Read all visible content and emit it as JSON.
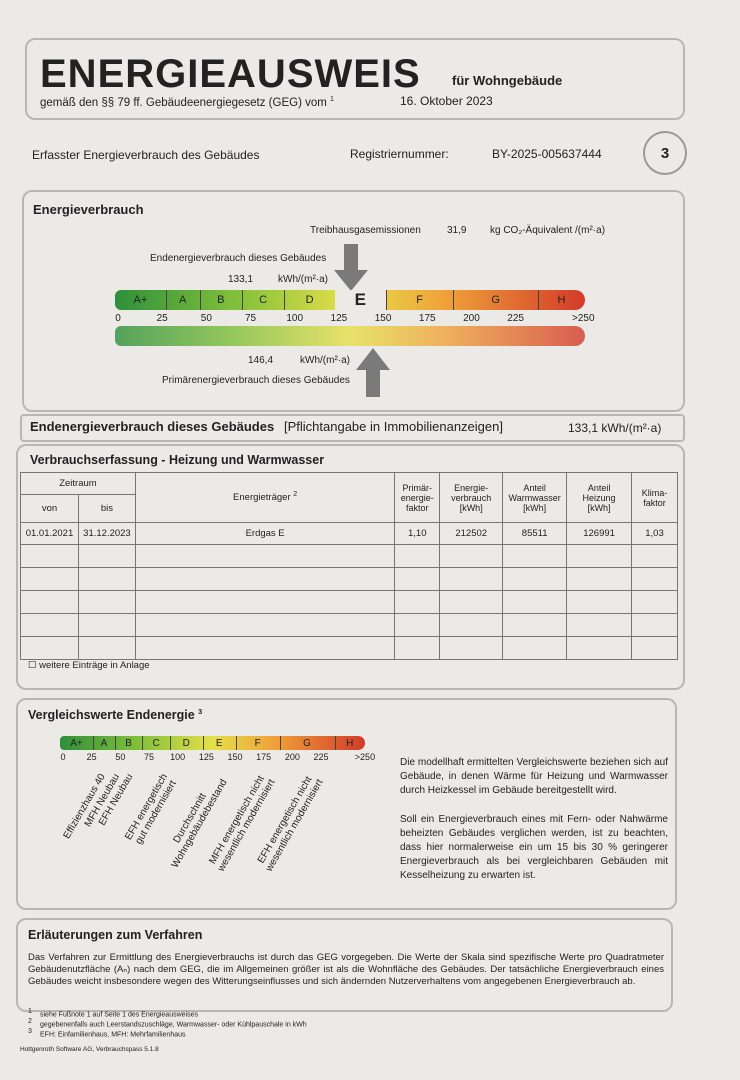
{
  "header": {
    "title": "ENERGIEAUSWEIS",
    "subtitle": "für Wohngebäude",
    "legal": "gemäß den §§ 79 ff. Gebäudeenergiegesetz (GEG) vom",
    "legal_note": "1",
    "date": "16. Oktober 2023"
  },
  "info": {
    "label": "Erfasster Energieverbrauch des Gebäudes",
    "reg_label": "Registriernummer:",
    "reg_number": "BY-2025-005637444",
    "page": "3"
  },
  "energy": {
    "title": "Energieverbrauch",
    "ghg_label": "Treibhausgasemissionen",
    "ghg_value": "31,9",
    "ghg_unit": "kg CO₂-Äquivalent /(m²·a)",
    "end_label": "Endenergieverbrauch dieses Gebäudes",
    "end_value": "133,1",
    "end_unit": "kWh/(m²·a)",
    "prim_value": "146,4",
    "prim_unit": "kWh/(m²·a)",
    "prim_label": "Primärenergieverbrauch dieses Gebäudes"
  },
  "scale": {
    "classes": [
      "A+",
      "A",
      "B",
      "C",
      "D",
      "E",
      "F",
      "G",
      "H"
    ],
    "ticks": [
      "0",
      "25",
      "50",
      "75",
      "100",
      "125",
      "150",
      "175",
      "200",
      "225",
      ">250"
    ]
  },
  "mandatory": {
    "label": "Endenergieverbrauch dieses Gebäudes",
    "note": "[Pflichtangabe in Immobilienanzeigen]",
    "value": "133,1 kWh/(m²·a)"
  },
  "table": {
    "title": "Verbrauchserfassung - Heizung und Warmwasser",
    "period": "Zeitraum",
    "from": "von",
    "to": "bis",
    "carrier": "Energieträger",
    "carrier_note": "2",
    "columns": [
      "Primär-\nenergie-\nfaktor",
      "Energie-\nverbrauch\n[kWh]",
      "Anteil\nWarmwasser\n[kWh]",
      "Anteil\nHeizung\n[kWh]",
      "Klima-\nfaktor"
    ],
    "rows": [
      [
        "01.01.2021",
        "31.12.2023",
        "Erdgas E",
        "1,10",
        "212502",
        "85511",
        "126991",
        "1,03"
      ]
    ],
    "note": "weitere Einträge in Anlage"
  },
  "comparison": {
    "title": "Vergleichswerte Endenergie",
    "title_note": "3",
    "labels": [
      [
        "Effizienzhaus 40"
      ],
      [
        "MFH Neubau"
      ],
      [
        "EFH Neubau"
      ],
      [
        "EFH energetisch",
        "gut modernisiert"
      ],
      [
        "Durchschnitt",
        "Wohngebäudebestand"
      ],
      [
        "MFH energetisch nicht",
        "wesentlich modernisiert"
      ],
      [
        "EFH energetisch nicht",
        "wesentlich modernisiert"
      ]
    ],
    "paragraphs": [
      "Die modellhaft ermittelten Vergleichswerte beziehen sich auf Gebäude, in denen Wärme für Heizung und Warmwasser durch Heizkessel im Gebäude bereitgestellt wird.",
      "Soll ein Energieverbrauch eines mit Fern- oder Nahwärme beheizten Gebäudes verglichen werden, ist zu beachten, dass hier normalerweise ein um 15 bis 30 % geringerer Energieverbrauch als bei vergleichbaren Gebäuden mit Kesselheizung zu erwarten ist."
    ]
  },
  "explanation": {
    "title": "Erläuterungen zum Verfahren",
    "text": "Das Verfahren zur Ermittlung des Energieverbrauchs ist durch das GEG vorgegeben. Die Werte der Skala sind spezifische Werte pro Quadratmeter Gebäudenutzfläche (Aₙ) nach dem GEG, die im Allgemeinen größer ist als die Wohnfläche des Gebäudes. Der tatsächliche Energieverbrauch eines Gebäudes weicht insbesondere wegen des Witterungseinflusses und sich ändernden Nutzerverhaltens vom angegebenen Energieverbrauch ab."
  },
  "footnotes": [
    [
      "1",
      "siehe Fußnote 1 auf Seite 1 des Energieausweises"
    ],
    [
      "2",
      "gegebenenfalls auch Leerstandszuschläge, Warmwasser- oder Kühlpauschale in kWh"
    ],
    [
      "3",
      "EFH: Einfamilienhaus, MFH: Mehrfamilienhaus"
    ]
  ],
  "software": "Hottgenroth Software AG, Verbrauchspass 5.1.8"
}
